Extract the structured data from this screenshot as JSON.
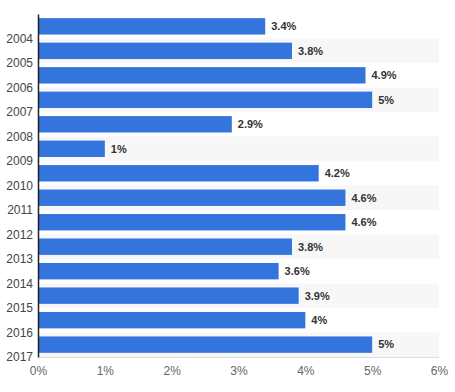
{
  "chart_data": {
    "type": "bar",
    "orientation": "horizontal",
    "categories": [
      "2004",
      "2005",
      "2006",
      "2007",
      "2008",
      "2009",
      "2010",
      "2011",
      "2012",
      "2013",
      "2014",
      "2015",
      "2016",
      "2017"
    ],
    "values": [
      3.4,
      3.8,
      4.9,
      5,
      2.9,
      1,
      4.2,
      4.6,
      4.6,
      3.8,
      3.6,
      3.9,
      4,
      5
    ],
    "value_labels": [
      "3.4%",
      "3.8%",
      "4.9%",
      "5%",
      "2.9%",
      "1%",
      "4.2%",
      "4.6%",
      "4.6%",
      "3.8%",
      "3.6%",
      "3.9%",
      "4%",
      "5%"
    ],
    "color": "#3375dd",
    "xlim": [
      0,
      6
    ],
    "xticks": [
      {
        "value": 0,
        "label": "0%"
      },
      {
        "value": 1,
        "label": "1%"
      },
      {
        "value": 2,
        "label": "2%"
      },
      {
        "value": 3,
        "label": "3%"
      },
      {
        "value": 4,
        "label": "4%"
      },
      {
        "value": 5,
        "label": "5%"
      },
      {
        "value": 6,
        "label": "6%"
      }
    ],
    "grid": false,
    "data_labels": true
  }
}
